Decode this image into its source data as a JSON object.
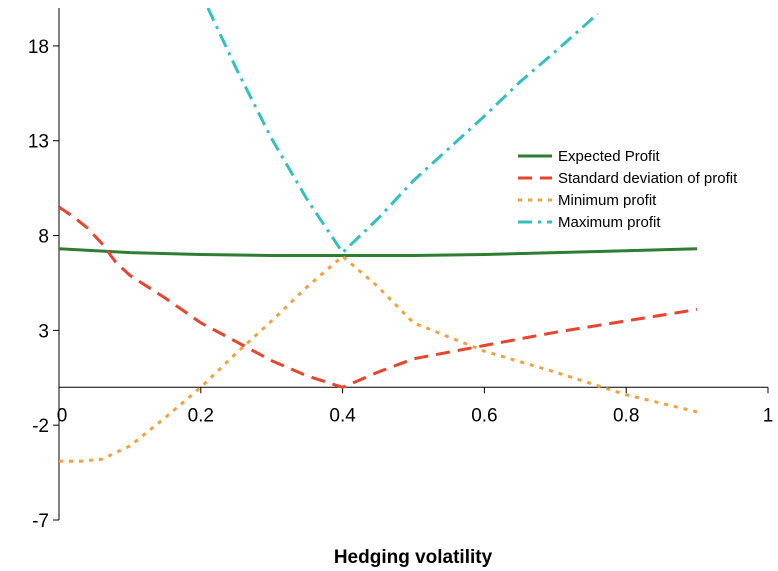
{
  "chart_data": {
    "type": "line",
    "title": "",
    "xlabel": "Hedging volatility",
    "ylabel": "",
    "xlim": [
      0,
      1
    ],
    "ylim": [
      -7,
      20
    ],
    "xticks": [
      0,
      0.2,
      0.4,
      0.6,
      0.8,
      1
    ],
    "xtick_labels": [
      "0",
      "0.2",
      "0.4",
      "0.6",
      "0.8",
      "1"
    ],
    "yticks": [
      -7,
      -2,
      3,
      8,
      13,
      18
    ],
    "ytick_labels": [
      "-7",
      "-2",
      "3",
      "8",
      "13",
      "18"
    ],
    "legend_position": "right",
    "grid": false,
    "series": [
      {
        "name": "Expected Profit",
        "color": "#2e7d32",
        "style": "solid",
        "x": [
          0,
          0.1,
          0.2,
          0.3,
          0.4,
          0.5,
          0.6,
          0.7,
          0.8,
          0.9
        ],
        "y": [
          7.3,
          7.1,
          7.0,
          6.95,
          6.95,
          6.95,
          7.0,
          7.1,
          7.2,
          7.3
        ]
      },
      {
        "name": "Standard deviation of profit",
        "color": "#e8442e",
        "style": "dashed",
        "x": [
          0,
          0.02,
          0.04,
          0.06,
          0.08,
          0.1,
          0.15,
          0.2,
          0.25,
          0.3,
          0.35,
          0.4,
          0.45,
          0.5,
          0.6,
          0.7,
          0.8,
          0.9
        ],
        "y": [
          9.5,
          9.0,
          8.4,
          7.6,
          6.6,
          5.9,
          4.7,
          3.4,
          2.4,
          1.4,
          0.6,
          0.0,
          0.8,
          1.5,
          2.2,
          2.9,
          3.5,
          4.1
        ]
      },
      {
        "name": "Minimum profit",
        "color": "#f5a03c",
        "style": "dotted",
        "x": [
          0,
          0.03,
          0.06,
          0.1,
          0.15,
          0.2,
          0.25,
          0.3,
          0.35,
          0.4,
          0.45,
          0.5,
          0.6,
          0.7,
          0.8,
          0.9
        ],
        "y": [
          -3.9,
          -3.9,
          -3.8,
          -3.1,
          -1.6,
          0.0,
          1.8,
          3.5,
          5.3,
          6.9,
          5.3,
          3.4,
          1.9,
          0.8,
          -0.4,
          -1.3
        ]
      },
      {
        "name": "Maximum profit",
        "color": "#33bfbf",
        "style": "dashdot",
        "x": [
          0.21,
          0.25,
          0.3,
          0.35,
          0.4,
          0.45,
          0.5,
          0.55,
          0.6,
          0.65,
          0.7,
          0.76
        ],
        "y": [
          20,
          16.8,
          13.1,
          9.9,
          7.1,
          8.9,
          10.9,
          12.6,
          14.3,
          16.1,
          17.7,
          19.7
        ]
      }
    ]
  }
}
